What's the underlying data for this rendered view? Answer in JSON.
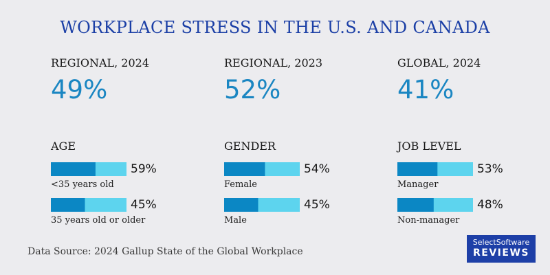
{
  "title": "WORKPLACE STRESS IN THE U.S. AND CANADA",
  "source": "Data Source: 2024 Gallup State of the Global Workplace",
  "logo": {
    "top": "SelectSoftware",
    "bottom": "REVIEWS"
  },
  "colors": {
    "bar_fill": "#0b87c4",
    "bar_track": "#5dd4ee",
    "title": "#1b3fa6",
    "stat": "#1a86c2"
  },
  "chart_data": [
    {
      "type": "bar",
      "stat_label": "REGIONAL, 2024",
      "stat_value": "49%",
      "group": "AGE",
      "categories": [
        "<35 years old",
        "35 years old or older"
      ],
      "values": [
        59,
        45
      ],
      "value_labels": [
        "59%",
        "45%"
      ],
      "ylim": [
        0,
        100
      ]
    },
    {
      "type": "bar",
      "stat_label": "REGIONAL, 2023",
      "stat_value": "52%",
      "group": "GENDER",
      "categories": [
        "Female",
        "Male"
      ],
      "values": [
        54,
        45
      ],
      "value_labels": [
        "54%",
        "45%"
      ],
      "ylim": [
        0,
        100
      ]
    },
    {
      "type": "bar",
      "stat_label": "GLOBAL, 2024",
      "stat_value": "41%",
      "group": "JOB LEVEL",
      "categories": [
        "Manager",
        "Non-manager"
      ],
      "values": [
        53,
        48
      ],
      "value_labels": [
        "53%",
        "48%"
      ],
      "ylim": [
        0,
        100
      ]
    }
  ]
}
